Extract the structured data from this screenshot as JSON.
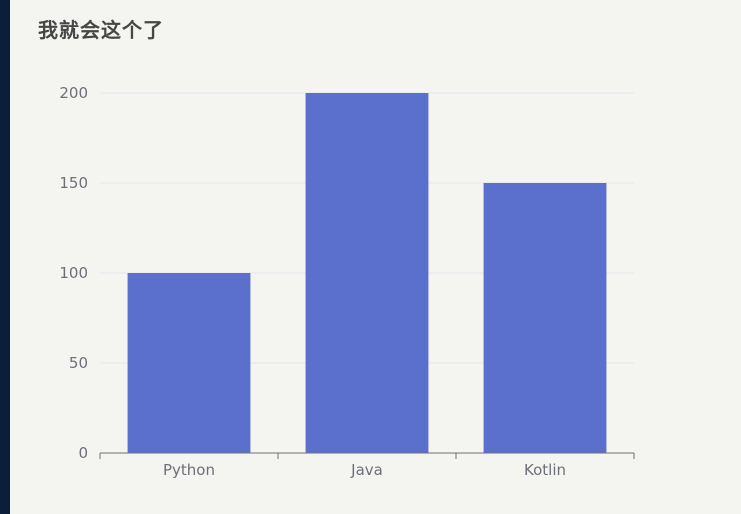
{
  "chart_data": {
    "type": "bar",
    "title": "我就会这个了",
    "categories": [
      "Python",
      "Java",
      "Kotlin"
    ],
    "values": [
      100,
      200,
      150
    ],
    "ylim": [
      0,
      200
    ],
    "yticks": [
      0,
      50,
      100,
      150,
      200
    ],
    "grid": true,
    "colors": {
      "bar": "#5a70cc",
      "grid": "#e4e6ef",
      "axis": "#6e7079",
      "background": "#f4f4f1"
    }
  }
}
